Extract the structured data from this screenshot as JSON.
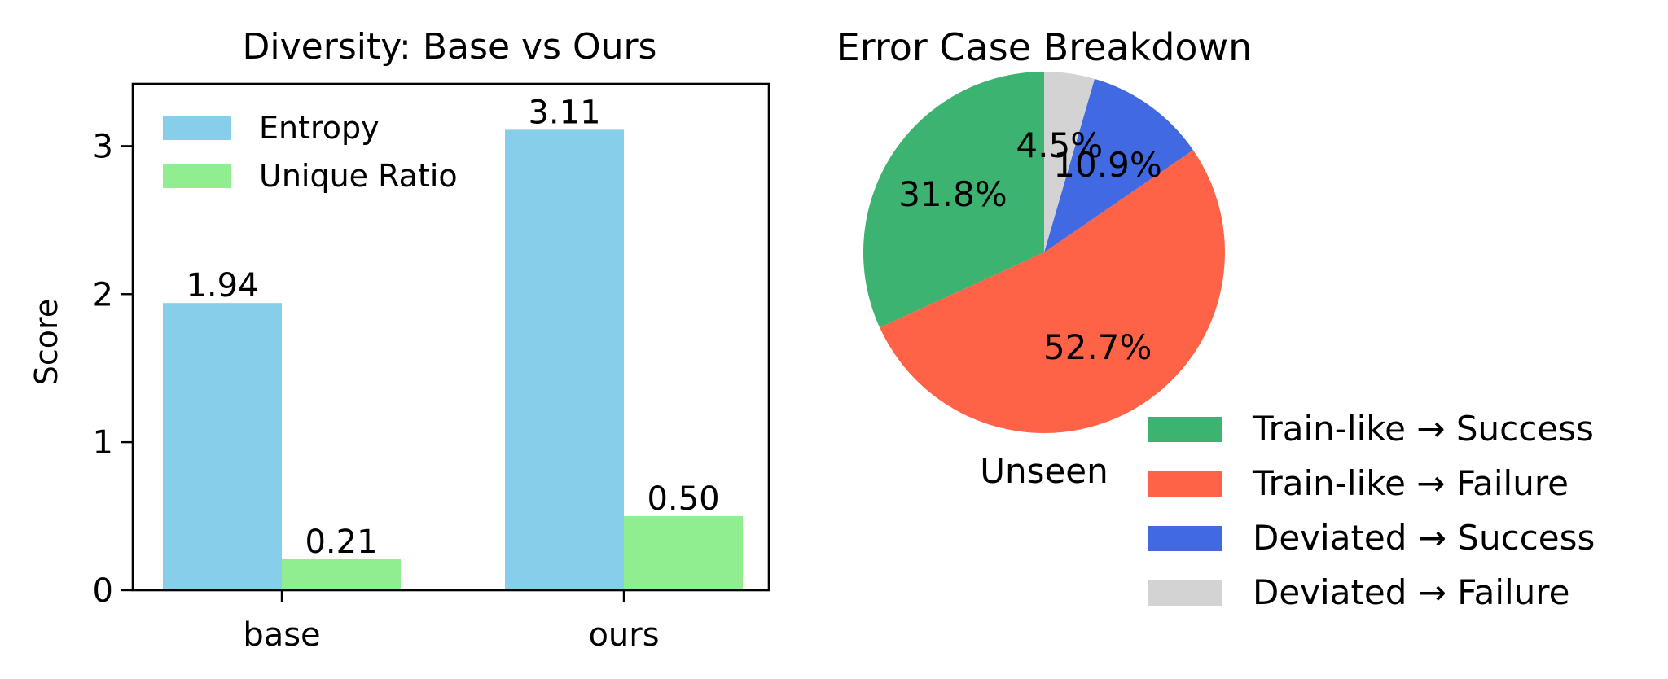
{
  "chart_data": [
    {
      "type": "bar",
      "title": "Diversity: Base vs Ours",
      "xlabel": "",
      "ylabel": "Score",
      "categories": [
        "base",
        "ours"
      ],
      "series": [
        {
          "name": "Entropy",
          "color": "#87ceeb",
          "values": [
            1.94,
            3.11
          ],
          "labels": [
            "1.94",
            "3.11"
          ]
        },
        {
          "name": "Unique Ratio",
          "color": "#90ee90",
          "values": [
            0.21,
            0.5
          ],
          "labels": [
            "0.21",
            "0.50"
          ]
        }
      ],
      "ylim": [
        0,
        3.42
      ],
      "yticks": [
        0,
        1,
        2,
        3
      ],
      "ytick_labels": [
        "0",
        "1",
        "2",
        "3"
      ],
      "legend": "upper-left",
      "grid": false
    },
    {
      "type": "pie",
      "title": "Error Case Breakdown",
      "subtitle": "Unseen",
      "start_angle_deg": 90,
      "direction": "clockwise",
      "slices": [
        {
          "name": "Train-like → Success",
          "value": 31.8,
          "label": "31.8%",
          "color": "#3cb371"
        },
        {
          "name": "Train-like → Failure",
          "value": 52.7,
          "label": "52.7%",
          "color": "#ff6347"
        },
        {
          "name": "Deviated → Success",
          "value": 10.9,
          "label": "10.9%",
          "color": "#4169e1"
        },
        {
          "name": "Deviated → Failure",
          "value": 4.5,
          "label": "4.5%",
          "color": "#d3d3d3"
        }
      ],
      "legend": "lower-right"
    }
  ]
}
